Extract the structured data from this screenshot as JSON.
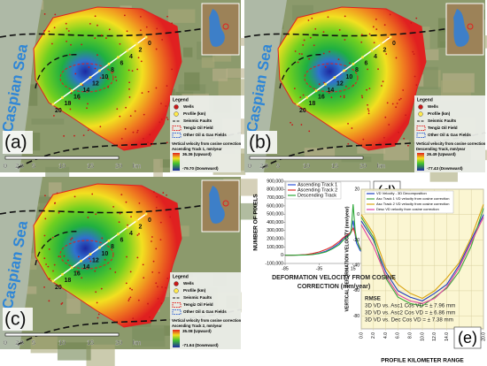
{
  "maps": {
    "common": {
      "sea": "Caspian Sea",
      "legend_title": "Legend",
      "wells": "Wells",
      "profile": "Profile (km)",
      "faults": "Seismic Faults",
      "tengiz": "Tengiz Oil Field",
      "other_fields": "Other Oil & Gas Fields",
      "velocity": "Vertical velocity from cosine correction",
      "scale": [
        "0",
        "2.5",
        "5",
        "10",
        "15",
        "20",
        "km"
      ],
      "profile_km": [
        "0",
        "2",
        "4",
        "6",
        "8",
        "10",
        "12",
        "14",
        "16",
        "18",
        "20"
      ]
    },
    "panels": [
      {
        "label": "(a)",
        "track": "Ascending Track 1, mm/year",
        "upward": "36.36 (Upward)",
        "downward": "-79.70 (Downward)"
      },
      {
        "label": "(b)",
        "track": "Descending Track, mm/year",
        "upward": "26.49 (Upward)",
        "downward": "-77.43 (Downward)"
      },
      {
        "label": "(c)",
        "track": "Ascending Track 2, mm/year",
        "upward": "35.08 (Upward)",
        "downward": "-71.64 (Downward)"
      }
    ]
  },
  "chart_data": [
    {
      "type": "line",
      "panel_label": "(d)",
      "y_label": "NUMBER OF PIXELS",
      "x_label": "DEFORMATION VELOCITY FROM COSINE CORRECTION (mm/year)",
      "x": [
        -85,
        -75,
        -65,
        -55,
        -45,
        -35,
        -25,
        -15,
        -5,
        0,
        5,
        10,
        12,
        15,
        18,
        20,
        25,
        30,
        35,
        40
      ],
      "series": [
        {
          "name": "Ascending Track 1",
          "color": "#2b4fd8",
          "values": [
            0,
            0,
            2000,
            5000,
            10000,
            25000,
            50000,
            90000,
            150000,
            200000,
            230000,
            260000,
            300000,
            420000,
            250000,
            150000,
            60000,
            20000,
            5000,
            0
          ]
        },
        {
          "name": "Ascending Track 2",
          "color": "#e0302a",
          "values": [
            0,
            0,
            3000,
            8000,
            20000,
            40000,
            70000,
            110000,
            170000,
            210000,
            240000,
            270000,
            280000,
            330000,
            260000,
            200000,
            90000,
            30000,
            8000,
            0
          ]
        },
        {
          "name": "Descending Track",
          "color": "#2ea83a",
          "values": [
            0,
            0,
            1000,
            3000,
            8000,
            20000,
            40000,
            80000,
            130000,
            180000,
            210000,
            250000,
            280000,
            620000,
            300000,
            200000,
            80000,
            25000,
            5000,
            0
          ]
        }
      ],
      "xlim": [
        -85,
        40
      ],
      "xticks": [
        -85,
        -35,
        15
      ],
      "ylim": [
        -100000,
        900000
      ],
      "yticks": [
        {
          "value": -100000,
          "label": "-100,000"
        },
        {
          "value": 0,
          "label": "0"
        },
        {
          "value": 100000,
          "label": "100,000"
        },
        {
          "value": 200000,
          "label": "200,000"
        },
        {
          "value": 300000,
          "label": "300,000"
        },
        {
          "value": 400000,
          "label": "400,000"
        },
        {
          "value": 500000,
          "label": "500,000"
        },
        {
          "value": 600000,
          "label": "600,000"
        },
        {
          "value": 700000,
          "label": "700,000"
        },
        {
          "value": 800000,
          "label": "800,000"
        },
        {
          "value": 900000,
          "label": "900,000"
        }
      ],
      "grid": false
    },
    {
      "type": "line",
      "panel_label": "(e)",
      "y_label": "VERTICAL DEFORMATION VELOCITY (mm/year)",
      "x_label": "PROFILE KILOMETER RANGE",
      "x": [
        0,
        2,
        4,
        6,
        8,
        10,
        12,
        14,
        16,
        18,
        20
      ],
      "series": [
        {
          "name": "VD Velocity - 3D Decomposition",
          "color": "#1f3fbf",
          "values": [
            -5,
            -20,
            -45,
            -60,
            -65,
            -68,
            -62,
            -55,
            -40,
            -20,
            0
          ]
        },
        {
          "name": "Asc Track 1 VD velocity from cosine correction",
          "color": "#3fa63f",
          "values": [
            -2,
            -18,
            -50,
            -65,
            -70,
            -72,
            -65,
            -58,
            -45,
            -25,
            5
          ]
        },
        {
          "name": "Asc Track 2 VD velocity from cosine correction",
          "color": "#d9a514",
          "values": [
            0,
            -15,
            -42,
            -55,
            -62,
            -66,
            -60,
            -50,
            -38,
            -18,
            8
          ]
        },
        {
          "name": "Desc VD velocity from cosine correction",
          "color": "#e040a0",
          "values": [
            -8,
            -25,
            -48,
            -63,
            -68,
            -70,
            -66,
            -57,
            -42,
            -22,
            -2
          ]
        }
      ],
      "annotations": [
        "RMSE",
        "3D VD vs. Asc1 Cos VD = ± 7.96 mm",
        "3D VD vs. Asc2 Cos VD = ± 6.86 mm",
        "3D VD vs. Dec Cos VD = ± 7.38 mm"
      ],
      "xlim": [
        0,
        20
      ],
      "xticks": [
        {
          "value": 0,
          "label": "0.0"
        },
        {
          "value": 2,
          "label": "2.0"
        },
        {
          "value": 4,
          "label": "4.0"
        },
        {
          "value": 6,
          "label": "6.0"
        },
        {
          "value": 8,
          "label": "8.0"
        },
        {
          "value": 10,
          "label": "10.0"
        },
        {
          "value": 12,
          "label": "12.0"
        },
        {
          "value": 14,
          "label": "14.0"
        },
        {
          "value": 16,
          "label": "16.0"
        },
        {
          "value": 18,
          "label": "18.0"
        },
        {
          "value": 20,
          "label": "20.0"
        }
      ],
      "ylim": [
        -90,
        20
      ],
      "yticks": [
        -80,
        -60,
        -40,
        -20,
        0,
        20
      ],
      "grid": true
    }
  ]
}
